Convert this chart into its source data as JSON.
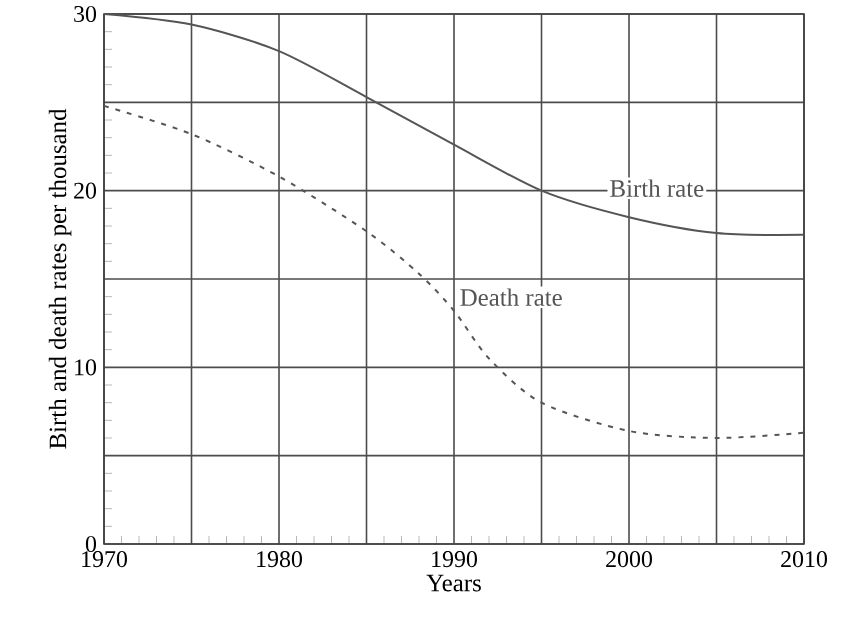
{
  "chart_data": {
    "type": "line",
    "xlabel": "Years",
    "ylabel": "Birth and death rates per thousand",
    "x": [
      1970,
      1975,
      1980,
      1985,
      1988,
      1990,
      1992,
      1995,
      2000,
      2005,
      2010
    ],
    "series": [
      {
        "name": "Birth rate",
        "color": "#555555",
        "line_style": "solid",
        "values": [
          30,
          29.4,
          27.9,
          25.3,
          null,
          22.6,
          null,
          20,
          18.5,
          17.6,
          17.5
        ]
      },
      {
        "name": "Death rate",
        "color": "#555555",
        "line_style": "dashed",
        "values": [
          24.8,
          23.2,
          20.8,
          17.7,
          15.3,
          13.2,
          10.5,
          8.0,
          6.4,
          6.0,
          6.3
        ]
      }
    ],
    "xlim": [
      1970,
      2010
    ],
    "ylim": [
      0,
      30
    ],
    "xticks": [
      1970,
      {
        "value": 1975,
        "label": null
      },
      1980,
      {
        "value": 1985,
        "label": null
      },
      1990,
      {
        "value": 1995,
        "label": null
      },
      2000,
      {
        "value": 2005,
        "label": null
      },
      2010
    ],
    "yticks": [
      0,
      {
        "value": 5,
        "label": null
      },
      10,
      {
        "value": 15,
        "label": null
      },
      20,
      {
        "value": 25,
        "label": null
      },
      30
    ],
    "grid": true
  }
}
